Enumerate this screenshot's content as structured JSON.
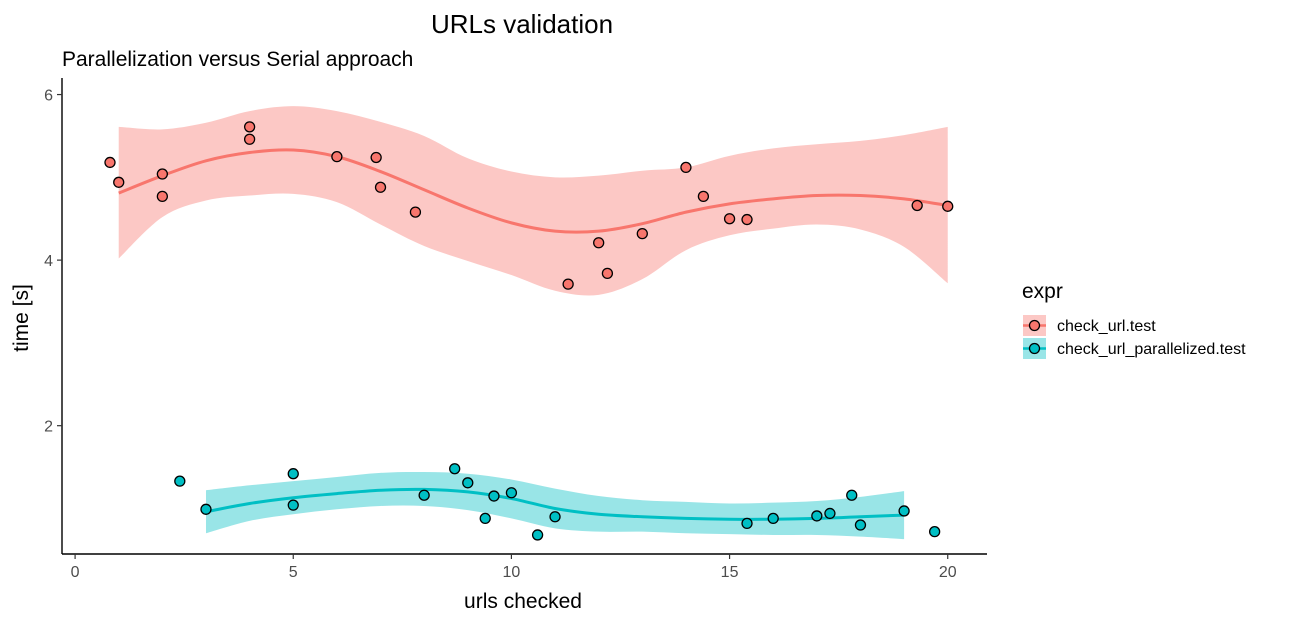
{
  "chart_data": {
    "type": "scatter",
    "title": "URLs validation",
    "subtitle": "Parallelization versus Serial approach",
    "xlabel": "urls checked",
    "ylabel": "time [s]",
    "xlim": [
      -0.3,
      20.9
    ],
    "ylim": [
      0.45,
      6.2
    ],
    "xticks": [
      0,
      5,
      10,
      15,
      20
    ],
    "yticks": [
      2,
      4,
      6
    ],
    "grid": false,
    "legend": {
      "title": "expr",
      "position": "right"
    },
    "series": [
      {
        "name": "check_url.test",
        "color": "#F8766D",
        "band_color": "#F8766D",
        "points": [
          [
            0.8,
            5.18
          ],
          [
            1.0,
            4.94
          ],
          [
            2.0,
            5.04
          ],
          [
            2.0,
            4.77
          ],
          [
            4.0,
            5.61
          ],
          [
            4.0,
            5.46
          ],
          [
            6.0,
            5.25
          ],
          [
            6.9,
            5.24
          ],
          [
            7.0,
            4.88
          ],
          [
            7.8,
            4.58
          ],
          [
            11.3,
            3.71
          ],
          [
            12.0,
            4.21
          ],
          [
            12.2,
            3.84
          ],
          [
            13.0,
            4.32
          ],
          [
            14.0,
            5.12
          ],
          [
            14.4,
            4.77
          ],
          [
            15.0,
            4.5
          ],
          [
            15.4,
            4.49
          ],
          [
            19.3,
            4.66
          ],
          [
            20.0,
            4.65
          ]
        ],
        "smooth": {
          "x": [
            1.0,
            2.0,
            3.0,
            4.0,
            5.0,
            6.0,
            7.0,
            8.0,
            9.0,
            10.0,
            11.0,
            12.0,
            13.0,
            14.0,
            15.0,
            16.0,
            17.0,
            18.0,
            19.0,
            20.0
          ],
          "y": [
            4.81,
            5.02,
            5.2,
            5.3,
            5.33,
            5.25,
            5.07,
            4.85,
            4.63,
            4.45,
            4.35,
            4.35,
            4.44,
            4.58,
            4.68,
            4.74,
            4.78,
            4.78,
            4.74,
            4.66
          ],
          "lower": [
            4.02,
            4.52,
            4.72,
            4.78,
            4.8,
            4.7,
            4.43,
            4.17,
            3.99,
            3.82,
            3.63,
            3.58,
            3.77,
            4.12,
            4.3,
            4.38,
            4.43,
            4.37,
            4.16,
            3.72
          ],
          "upper": [
            5.61,
            5.58,
            5.66,
            5.8,
            5.86,
            5.8,
            5.67,
            5.5,
            5.23,
            5.07,
            5.0,
            5.02,
            5.08,
            5.12,
            5.26,
            5.35,
            5.4,
            5.44,
            5.51,
            5.61
          ]
        }
      },
      {
        "name": "check_url_parallelized.test",
        "color": "#00BFC4",
        "band_color": "#00BFC4",
        "points": [
          [
            2.4,
            1.33
          ],
          [
            3.0,
            0.99
          ],
          [
            5.0,
            1.42
          ],
          [
            5.0,
            1.04
          ],
          [
            8.0,
            1.16
          ],
          [
            8.7,
            1.48
          ],
          [
            9.0,
            1.31
          ],
          [
            9.4,
            0.88
          ],
          [
            9.6,
            1.15
          ],
          [
            10.0,
            1.19
          ],
          [
            10.6,
            0.68
          ],
          [
            11.0,
            0.9
          ],
          [
            15.4,
            0.82
          ],
          [
            16.0,
            0.88
          ],
          [
            17.0,
            0.91
          ],
          [
            17.3,
            0.94
          ],
          [
            17.8,
            1.16
          ],
          [
            18.0,
            0.8
          ],
          [
            19.0,
            0.97
          ],
          [
            19.7,
            0.72
          ]
        ],
        "smooth": {
          "x": [
            3.0,
            4.0,
            5.0,
            6.0,
            7.0,
            8.0,
            9.0,
            10.0,
            11.0,
            12.0,
            13.0,
            14.0,
            15.0,
            16.0,
            17.0,
            18.0,
            19.0
          ],
          "y": [
            0.96,
            1.06,
            1.13,
            1.18,
            1.22,
            1.23,
            1.2,
            1.12,
            1.0,
            0.93,
            0.9,
            0.88,
            0.87,
            0.87,
            0.88,
            0.9,
            0.92
          ],
          "lower": [
            0.7,
            0.85,
            0.93,
            0.99,
            1.03,
            1.03,
            0.98,
            0.88,
            0.76,
            0.72,
            0.72,
            0.7,
            0.69,
            0.68,
            0.68,
            0.66,
            0.63
          ],
          "upper": [
            1.22,
            1.28,
            1.33,
            1.38,
            1.43,
            1.44,
            1.42,
            1.35,
            1.24,
            1.15,
            1.1,
            1.08,
            1.06,
            1.07,
            1.09,
            1.14,
            1.21
          ]
        }
      }
    ]
  }
}
